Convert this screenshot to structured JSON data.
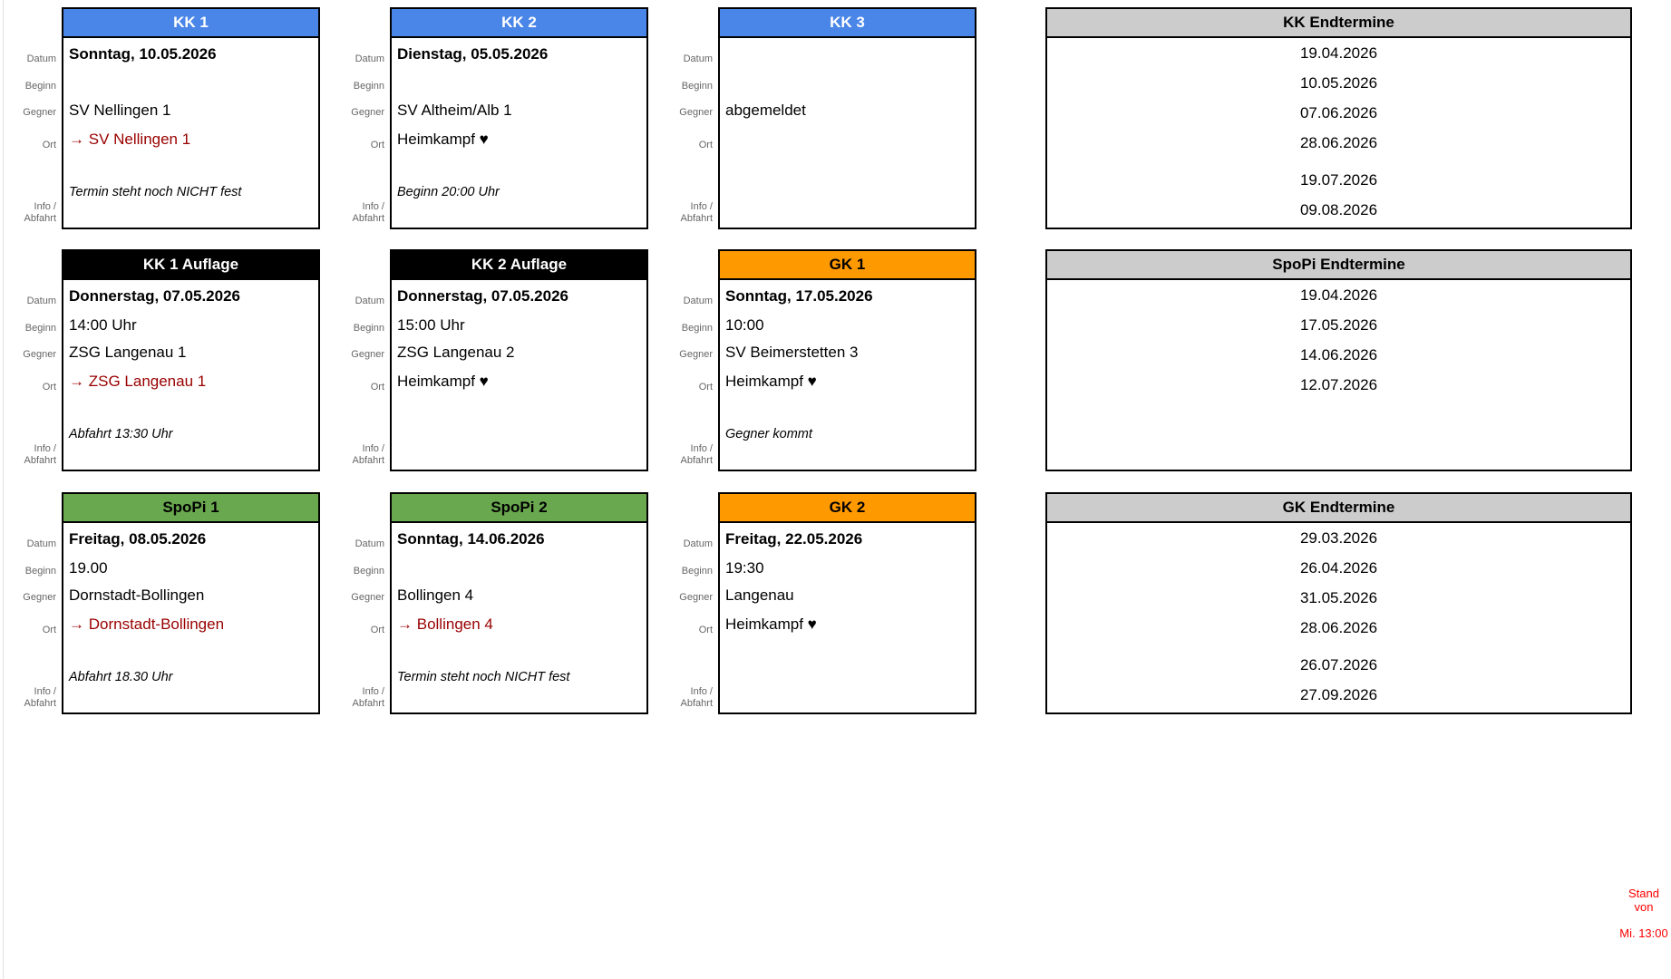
{
  "labels": {
    "datum": "Datum",
    "beginn": "Beginn",
    "gegner": "Gegner",
    "ort": "Ort",
    "info": "Info /\nAbfahrt"
  },
  "colors": {
    "kk_header": "#4a86e8",
    "auflage_header": "#000000",
    "gk_header": "#ff9900",
    "spopi_header": "#6aa84f",
    "endtermine_header": "#cccccc",
    "away_text": "#990000",
    "stand_text": "#ff0000"
  },
  "cards": [
    {
      "title": "KK 1",
      "header_style": "background:#4a86e8;color:#ffffff",
      "datum": "Sonntag, 10.05.2026",
      "beginn": "",
      "gegner": "SV Nellingen 1",
      "ort": {
        "arrow": "→ ",
        "text": "SV Nellingen 1",
        "style": "color:#990000"
      },
      "info": "Termin steht noch NICHT fest"
    },
    {
      "title": "KK 2",
      "header_style": "background:#4a86e8;color:#ffffff",
      "datum": "Dienstag, 05.05.2026",
      "beginn": "",
      "gegner": "SV Altheim/Alb 1",
      "ort": {
        "arrow": "",
        "text": "Heimkampf ♥",
        "style": ""
      },
      "info": "Beginn 20:00 Uhr"
    },
    {
      "title": "KK 3",
      "header_style": "background:#4a86e8;color:#ffffff",
      "datum": "",
      "beginn": "",
      "gegner": "abgemeldet",
      "ort": {
        "arrow": "",
        "text": "",
        "style": ""
      },
      "info": ""
    },
    {
      "title": "KK 1 Auflage",
      "header_style": "background:#000000;color:#ffffff",
      "datum": "Donnerstag, 07.05.2026",
      "beginn": "14:00 Uhr",
      "gegner": "ZSG Langenau 1",
      "ort": {
        "arrow": "→ ",
        "text": "ZSG Langenau 1",
        "style": "color:#990000"
      },
      "info": "Abfahrt 13:30 Uhr"
    },
    {
      "title": "KK 2 Auflage",
      "header_style": "background:#000000;color:#ffffff",
      "datum": "Donnerstag, 07.05.2026",
      "beginn": "15:00 Uhr",
      "gegner": "ZSG Langenau 2",
      "ort": {
        "arrow": "",
        "text": "Heimkampf ♥",
        "style": ""
      },
      "info": ""
    },
    {
      "title": "GK 1",
      "header_style": "background:#ff9900;color:#000000",
      "datum": "Sonntag, 17.05.2026",
      "beginn": "10:00",
      "gegner": "SV Beimerstetten 3",
      "ort": {
        "arrow": "",
        "text": "Heimkampf ♥",
        "style": ""
      },
      "info": "Gegner kommt"
    },
    {
      "title": "SpoPi 1",
      "header_style": "background:#6aa84f;color:#000000",
      "datum": "Freitag, 08.05.2026",
      "beginn": "19.00",
      "gegner": "Dornstadt-Bollingen",
      "ort": {
        "arrow": "→ ",
        "text": "Dornstadt-Bollingen",
        "style": "color:#990000"
      },
      "info": "Abfahrt 18.30 Uhr"
    },
    {
      "title": "SpoPi 2",
      "header_style": "background:#6aa84f;color:#000000",
      "datum": "Sonntag, 14.06.2026",
      "beginn": "",
      "gegner": "Bollingen 4",
      "ort": {
        "arrow": "→ ",
        "text": "Bollingen 4",
        "style": "color:#990000"
      },
      "info": "Termin steht noch NICHT fest"
    },
    {
      "title": "GK 2",
      "header_style": "background:#ff9900;color:#000000",
      "datum": "Freitag, 22.05.2026",
      "beginn": "19:30",
      "gegner": "Langenau",
      "ort": {
        "arrow": "",
        "text": "Heimkampf ♥",
        "style": ""
      },
      "info": ""
    }
  ],
  "tables": [
    {
      "title": "KK Endtermine",
      "header_style": "background:#cccccc;color:#000000",
      "rows": [
        "19.04.2026",
        "10.05.2026",
        "07.06.2026",
        "28.06.2026",
        "19.07.2026",
        "09.08.2026"
      ]
    },
    {
      "title": "SpoPi Endtermine",
      "header_style": "background:#cccccc;color:#000000",
      "rows": [
        "19.04.2026",
        "17.05.2026",
        "14.06.2026",
        "12.07.2026"
      ]
    },
    {
      "title": "GK Endtermine",
      "header_style": "background:#cccccc;color:#000000",
      "rows": [
        "29.03.2026",
        "26.04.2026",
        "31.05.2026",
        "28.06.2026",
        "26.07.2026",
        "27.09.2026"
      ]
    }
  ],
  "footer": {
    "style": "color:#ff0000",
    "lines": [
      "Stand von",
      "Mi. 13:00"
    ]
  }
}
